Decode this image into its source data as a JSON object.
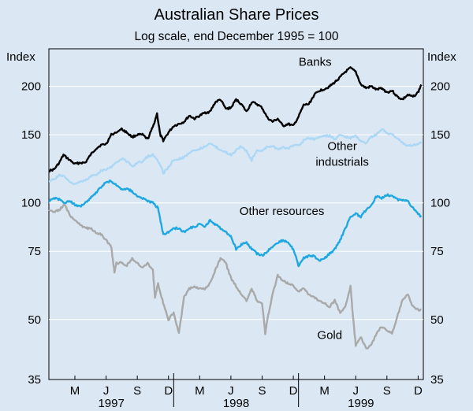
{
  "chart_data": {
    "type": "line",
    "title": "Australian Share Prices",
    "subtitle": "Log scale, end December 1995 = 100",
    "y_scale": "log",
    "ylim": [
      35,
      250
    ],
    "y_ticks": [
      35,
      50,
      75,
      100,
      150,
      200
    ],
    "y_axis_label_left": "Index",
    "y_axis_label_right": "Index",
    "x_range_months": [
      0,
      36
    ],
    "x_ticks": [
      {
        "label": "M",
        "month": 2
      },
      {
        "label": "J",
        "month": 5
      },
      {
        "label": "S",
        "month": 8
      },
      {
        "label": "D",
        "month": 11
      },
      {
        "label": "M",
        "month": 14
      },
      {
        "label": "J",
        "month": 17
      },
      {
        "label": "S",
        "month": 20
      },
      {
        "label": "D",
        "month": 23
      },
      {
        "label": "M",
        "month": 26
      },
      {
        "label": "J",
        "month": 29
      },
      {
        "label": "S",
        "month": 32
      },
      {
        "label": "D",
        "month": 35
      }
    ],
    "years": [
      {
        "label": "1997",
        "center_month": 6
      },
      {
        "label": "1998",
        "center_month": 18
      },
      {
        "label": "1999",
        "center_month": 30
      }
    ],
    "series": [
      {
        "name": "Banks",
        "label": "Banks",
        "color": "#000000",
        "label_anchor": {
          "month": 25.6,
          "value": 226
        },
        "points": [
          [
            0,
            121
          ],
          [
            0.5,
            122
          ],
          [
            1,
            127
          ],
          [
            1.4,
            133
          ],
          [
            2,
            129
          ],
          [
            2.5,
            126
          ],
          [
            3,
            127
          ],
          [
            3.5,
            127
          ],
          [
            4,
            133
          ],
          [
            4.5,
            138
          ],
          [
            5,
            141
          ],
          [
            5.5,
            142
          ],
          [
            6,
            150
          ],
          [
            7,
            155
          ],
          [
            7.5,
            152
          ],
          [
            8,
            148
          ],
          [
            8.5,
            150
          ],
          [
            9,
            150
          ],
          [
            9.5,
            146
          ],
          [
            10,
            157
          ],
          [
            10.4,
            170
          ],
          [
            10.7,
            150
          ],
          [
            11,
            145
          ],
          [
            11.5,
            152
          ],
          [
            12,
            158
          ],
          [
            12.5,
            160
          ],
          [
            13,
            162
          ],
          [
            13.5,
            168
          ],
          [
            14,
            165
          ],
          [
            14.5,
            168
          ],
          [
            15,
            171
          ],
          [
            15.5,
            172
          ],
          [
            16,
            182
          ],
          [
            16.5,
            185
          ],
          [
            17,
            175
          ],
          [
            17.5,
            176
          ],
          [
            18,
            185
          ],
          [
            18.5,
            180
          ],
          [
            19,
            172
          ],
          [
            19.5,
            182
          ],
          [
            20,
            180
          ],
          [
            20.5,
            176
          ],
          [
            21,
            166
          ],
          [
            21.5,
            162
          ],
          [
            22,
            165
          ],
          [
            22.5,
            158
          ],
          [
            23,
            160
          ],
          [
            23.5,
            158
          ],
          [
            24,
            167
          ],
          [
            24.5,
            179
          ],
          [
            25,
            180
          ],
          [
            25.5,
            190
          ],
          [
            26,
            195
          ],
          [
            26.5,
            197
          ],
          [
            27,
            200
          ],
          [
            27.5,
            205
          ],
          [
            28,
            211
          ],
          [
            28.5,
            218
          ],
          [
            29,
            223
          ],
          [
            29.5,
            218
          ],
          [
            30,
            202
          ],
          [
            30.5,
            198
          ],
          [
            31,
            200
          ],
          [
            31.5,
            196
          ],
          [
            32,
            198
          ],
          [
            32.5,
            193
          ],
          [
            33,
            195
          ],
          [
            33.5,
            188
          ],
          [
            34,
            185
          ],
          [
            34.5,
            190
          ],
          [
            35,
            188
          ],
          [
            35.5,
            193
          ],
          [
            35.8,
            202
          ]
        ]
      },
      {
        "name": "Other industrials",
        "label_lines": [
          "Other",
          "industrials"
        ],
        "color": "#add8f5",
        "label_anchor": {
          "month": 28.2,
          "value": 137
        },
        "points": [
          [
            0,
            114
          ],
          [
            0.5,
            115
          ],
          [
            1,
            118
          ],
          [
            1.5,
            117
          ],
          [
            2,
            113
          ],
          [
            2.5,
            112
          ],
          [
            3,
            113
          ],
          [
            3.5,
            114
          ],
          [
            4,
            117
          ],
          [
            4.5,
            118
          ],
          [
            5,
            121
          ],
          [
            5.5,
            122
          ],
          [
            6,
            124
          ],
          [
            7,
            130
          ],
          [
            7.5,
            128
          ],
          [
            8,
            124
          ],
          [
            8.5,
            127
          ],
          [
            9,
            128
          ],
          [
            9.5,
            132
          ],
          [
            10,
            133
          ],
          [
            10.5,
            128
          ],
          [
            10.8,
            124
          ],
          [
            11,
            119
          ],
          [
            11.5,
            124
          ],
          [
            12,
            129
          ],
          [
            12.5,
            130
          ],
          [
            13,
            131
          ],
          [
            13.5,
            135
          ],
          [
            14,
            136
          ],
          [
            14.5,
            138
          ],
          [
            15,
            140
          ],
          [
            15.5,
            142
          ],
          [
            16,
            140
          ],
          [
            16.5,
            137
          ],
          [
            17,
            135
          ],
          [
            17.5,
            133
          ],
          [
            18,
            137
          ],
          [
            18.5,
            140
          ],
          [
            19,
            136
          ],
          [
            19.5,
            129
          ],
          [
            20,
            137
          ],
          [
            20.5,
            136
          ],
          [
            21,
            140
          ],
          [
            21.5,
            140
          ],
          [
            22,
            138
          ],
          [
            22.5,
            139
          ],
          [
            23,
            138
          ],
          [
            23.5,
            141
          ],
          [
            24,
            141
          ],
          [
            24.5,
            145
          ],
          [
            25,
            147
          ],
          [
            25.5,
            146
          ],
          [
            26,
            148
          ],
          [
            26.5,
            149
          ],
          [
            27,
            149
          ],
          [
            27.5,
            146
          ],
          [
            28,
            150
          ],
          [
            28.5,
            148
          ],
          [
            29,
            147
          ],
          [
            29.5,
            149
          ],
          [
            30,
            144
          ],
          [
            30.5,
            142
          ],
          [
            31,
            148
          ],
          [
            31.5,
            150
          ],
          [
            32,
            155
          ],
          [
            32.5,
            152
          ],
          [
            33,
            150
          ],
          [
            33.5,
            147
          ],
          [
            34,
            143
          ],
          [
            34.5,
            140
          ],
          [
            35,
            141
          ],
          [
            35.5,
            142
          ],
          [
            35.8,
            144
          ]
        ]
      },
      {
        "name": "Other resources",
        "label": "Other resources",
        "color": "#1fa8e0",
        "label_anchor": {
          "month": 22.4,
          "value": 93
        },
        "points": [
          [
            0,
            101
          ],
          [
            0.5,
            103
          ],
          [
            1,
            102
          ],
          [
            1.5,
            100
          ],
          [
            2,
            101
          ],
          [
            2.5,
            99
          ],
          [
            3,
            98
          ],
          [
            3.5,
            100
          ],
          [
            4,
            103
          ],
          [
            4.5,
            106
          ],
          [
            5,
            110
          ],
          [
            5.5,
            113
          ],
          [
            6,
            114
          ],
          [
            6.5,
            111
          ],
          [
            7,
            108
          ],
          [
            7.5,
            109
          ],
          [
            8,
            107
          ],
          [
            8.5,
            104
          ],
          [
            9,
            103
          ],
          [
            9.5,
            101
          ],
          [
            10,
            100
          ],
          [
            10.5,
            97
          ],
          [
            10.8,
            88
          ],
          [
            11,
            83
          ],
          [
            11.5,
            84
          ],
          [
            12,
            86
          ],
          [
            12.5,
            86
          ],
          [
            13,
            84
          ],
          [
            13.5,
            86
          ],
          [
            14,
            87
          ],
          [
            14.5,
            88
          ],
          [
            15,
            87
          ],
          [
            15.5,
            90
          ],
          [
            16,
            88
          ],
          [
            16.5,
            86
          ],
          [
            17,
            84
          ],
          [
            17.5,
            82
          ],
          [
            18,
            76
          ],
          [
            18.5,
            78
          ],
          [
            19,
            79
          ],
          [
            19.5,
            76
          ],
          [
            20,
            74
          ],
          [
            20.5,
            73
          ],
          [
            21,
            75
          ],
          [
            21.5,
            77
          ],
          [
            22,
            79
          ],
          [
            22.5,
            80
          ],
          [
            23,
            79
          ],
          [
            23.5,
            76
          ],
          [
            24,
            69
          ],
          [
            24.5,
            72
          ],
          [
            25,
            73
          ],
          [
            25.5,
            73
          ],
          [
            26,
            71
          ],
          [
            26.5,
            72
          ],
          [
            27,
            74
          ],
          [
            27.5,
            76
          ],
          [
            28,
            80
          ],
          [
            28.5,
            86
          ],
          [
            29,
            92
          ],
          [
            29.5,
            94
          ],
          [
            30,
            92
          ],
          [
            30.5,
            96
          ],
          [
            31,
            99
          ],
          [
            31.5,
            104
          ],
          [
            32,
            103
          ],
          [
            32.5,
            105
          ],
          [
            33,
            104
          ],
          [
            33.5,
            102
          ],
          [
            34,
            102
          ],
          [
            34.5,
            101
          ],
          [
            35,
            97
          ],
          [
            35.5,
            94
          ],
          [
            35.8,
            92
          ]
        ]
      },
      {
        "name": "Gold",
        "label": "Gold",
        "color": "#a9a9a9",
        "label_anchor": {
          "month": 27.0,
          "value": 44.5
        },
        "points": [
          [
            0,
            96
          ],
          [
            0.5,
            95
          ],
          [
            1,
            96
          ],
          [
            1.5,
            99
          ],
          [
            2,
            93
          ],
          [
            2.5,
            90
          ],
          [
            3,
            88
          ],
          [
            3.5,
            86
          ],
          [
            4,
            86
          ],
          [
            4.5,
            84
          ],
          [
            5,
            83
          ],
          [
            5.5,
            80
          ],
          [
            6,
            77
          ],
          [
            6.3,
            66
          ],
          [
            6.5,
            70
          ],
          [
            7,
            70
          ],
          [
            7.5,
            69
          ],
          [
            8,
            72
          ],
          [
            8.5,
            70
          ],
          [
            9,
            68
          ],
          [
            9.5,
            70
          ],
          [
            10,
            67
          ],
          [
            10.2,
            57
          ],
          [
            10.5,
            62
          ],
          [
            11,
            55
          ],
          [
            11.5,
            50
          ],
          [
            12,
            52
          ],
          [
            12.5,
            46
          ],
          [
            13,
            57
          ],
          [
            13.5,
            60
          ],
          [
            14,
            61
          ],
          [
            14.5,
            60
          ],
          [
            15,
            60
          ],
          [
            15.5,
            62
          ],
          [
            16,
            67
          ],
          [
            16.5,
            72
          ],
          [
            17,
            70
          ],
          [
            17.5,
            64
          ],
          [
            18,
            61
          ],
          [
            18.5,
            58
          ],
          [
            19,
            56
          ],
          [
            19.5,
            60
          ],
          [
            20,
            56
          ],
          [
            20.5,
            55
          ],
          [
            20.8,
            46
          ],
          [
            21,
            50
          ],
          [
            21.5,
            58
          ],
          [
            22,
            65
          ],
          [
            22.5,
            63
          ],
          [
            23,
            62
          ],
          [
            23.5,
            61
          ],
          [
            24,
            59
          ],
          [
            24.5,
            60
          ],
          [
            25,
            58
          ],
          [
            25.5,
            57
          ],
          [
            26,
            56
          ],
          [
            26.5,
            55
          ],
          [
            27,
            54
          ],
          [
            27.5,
            56
          ],
          [
            28,
            52
          ],
          [
            28.5,
            54
          ],
          [
            29,
            61
          ],
          [
            29.2,
            52
          ],
          [
            29.5,
            43
          ],
          [
            30,
            45
          ],
          [
            30.5,
            42
          ],
          [
            31,
            43
          ],
          [
            31.5,
            46
          ],
          [
            32,
            48
          ],
          [
            32.5,
            47
          ],
          [
            33,
            46
          ],
          [
            33.5,
            51
          ],
          [
            34,
            56
          ],
          [
            34.5,
            58
          ],
          [
            35,
            54
          ],
          [
            35.5,
            53
          ],
          [
            35.8,
            53
          ]
        ]
      }
    ]
  }
}
